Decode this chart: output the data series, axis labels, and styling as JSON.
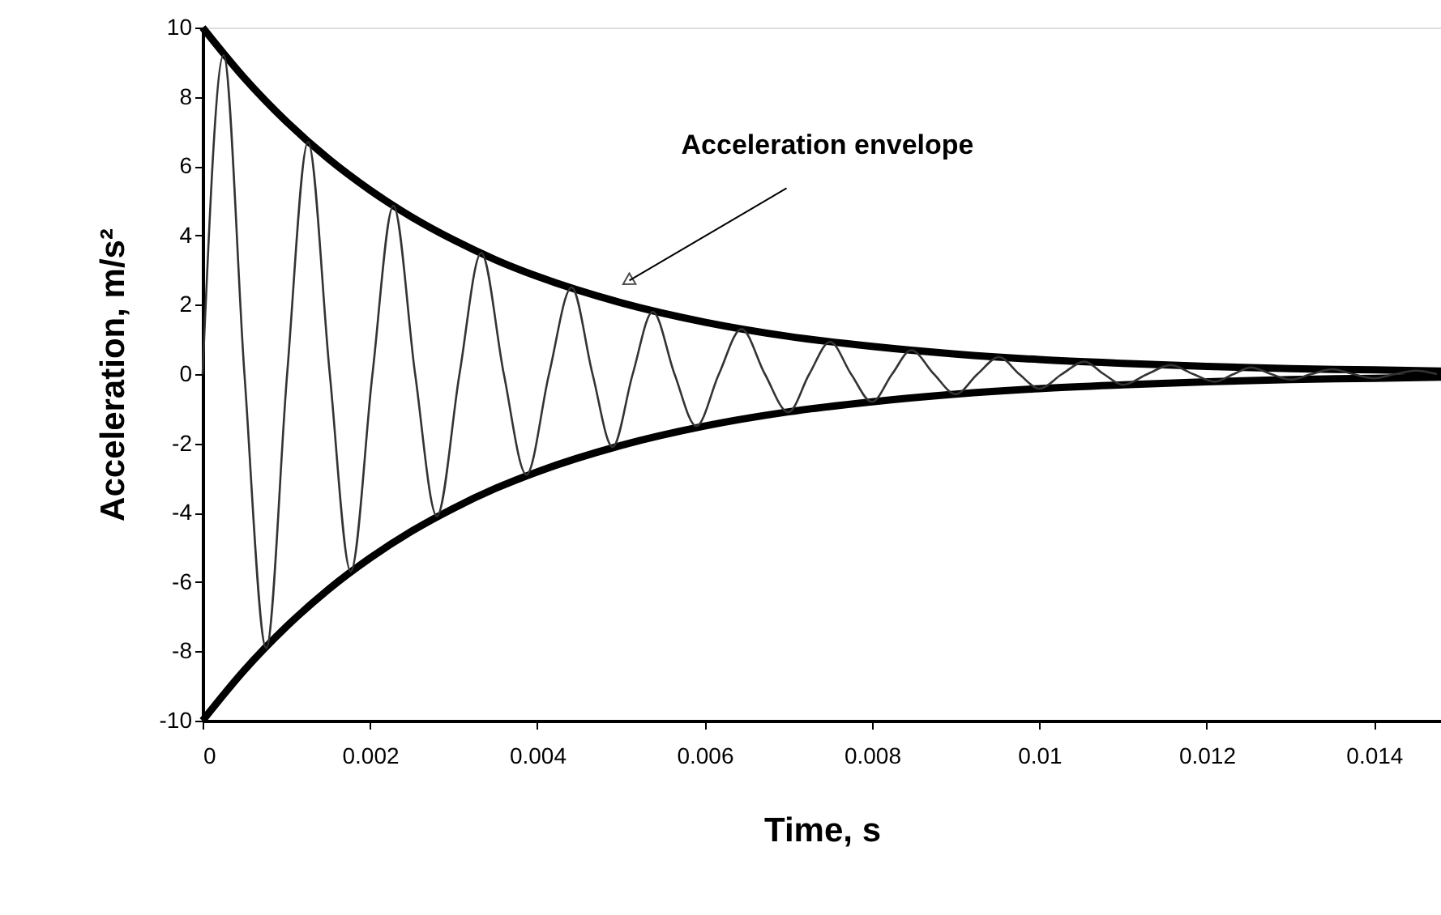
{
  "chart_data": {
    "type": "line",
    "xlabel": "Time, s",
    "ylabel": "Acceleration, m/s²",
    "xlim": [
      0,
      0.0148
    ],
    "ylim": [
      -10,
      10
    ],
    "xticks": [
      0,
      0.002,
      0.004,
      0.006,
      0.008,
      0.01,
      0.012,
      0.014
    ],
    "yticks": [
      -10,
      -8,
      -6,
      -4,
      -2,
      0,
      2,
      4,
      6,
      8,
      10
    ],
    "grid": false,
    "marker": "none",
    "line_style": "solid",
    "annotations": [
      {
        "text": "Acceleration envelope",
        "x": 0.0051,
        "y": 2.7
      }
    ],
    "series": [
      {
        "color": "#000000",
        "x": [
          0,
          0.0005,
          0.001,
          0.0015,
          0.002,
          0.0025,
          0.003,
          0.0035,
          0.004,
          0.005,
          0.006,
          0.007,
          0.008,
          0.009,
          0.01,
          0.011,
          0.012,
          0.013,
          0.014,
          0.0148
        ],
        "values": [
          10,
          8.54,
          7.29,
          6.22,
          5.31,
          4.53,
          3.87,
          3.3,
          2.82,
          2.06,
          1.5,
          1.09,
          0.8,
          0.58,
          0.42,
          0.31,
          0.22,
          0.16,
          0.12,
          0.09
        ]
      },
      {
        "color": "#000000",
        "x": [
          0,
          0.0005,
          0.001,
          0.0015,
          0.002,
          0.0025,
          0.003,
          0.0035,
          0.004,
          0.005,
          0.006,
          0.007,
          0.008,
          0.009,
          0.01,
          0.011,
          0.012,
          0.013,
          0.014,
          0.0148
        ],
        "values": [
          -10,
          -8.54,
          -7.29,
          -6.22,
          -5.31,
          -4.53,
          -3.87,
          -3.3,
          -2.82,
          -2.06,
          -1.5,
          -1.09,
          -0.8,
          -0.58,
          -0.42,
          -0.31,
          -0.22,
          -0.16,
          -0.12,
          -0.09
        ]
      },
      {
        "color": "#333333",
        "x": [
          0,
          0.00025,
          0.0005,
          0.00076,
          0.00101,
          0.00126,
          0.00152,
          0.00177,
          0.00203,
          0.00228,
          0.00254,
          0.0028,
          0.00307,
          0.00333,
          0.0036,
          0.00387,
          0.00414,
          0.00441,
          0.00466,
          0.0049,
          0.00514,
          0.00538,
          0.00564,
          0.0059,
          0.00617,
          0.00644,
          0.00672,
          0.007,
          0.00725,
          0.0075,
          0.00775,
          0.008,
          0.00824,
          0.00847,
          0.00874,
          0.009,
          0.00926,
          0.00952,
          0.00976,
          0.01,
          0.01027,
          0.01054,
          0.01077,
          0.011,
          0.01129,
          0.01157,
          0.01184,
          0.0121,
          0.01232,
          0.01253,
          0.01277,
          0.013,
          0.01325,
          0.0135,
          0.01375,
          0.014,
          0.01425,
          0.0145,
          0.01475
        ],
        "values": [
          0,
          9.2,
          0,
          -7.9,
          0,
          6.7,
          0,
          -5.7,
          0,
          4.86,
          0,
          -4.1,
          0,
          3.5,
          0,
          -2.9,
          0,
          2.5,
          0,
          -2.1,
          0,
          1.8,
          0,
          -1.5,
          0,
          1.3,
          0,
          -1.1,
          0,
          0.93,
          0,
          -0.8,
          0,
          0.69,
          0,
          -0.58,
          0,
          0.49,
          0,
          -0.42,
          0,
          0.36,
          0,
          -0.31,
          0,
          0.26,
          0,
          -0.22,
          0,
          0.19,
          0,
          -0.16,
          0,
          0.14,
          0,
          -0.12,
          0,
          0.1,
          0
        ]
      }
    ]
  }
}
